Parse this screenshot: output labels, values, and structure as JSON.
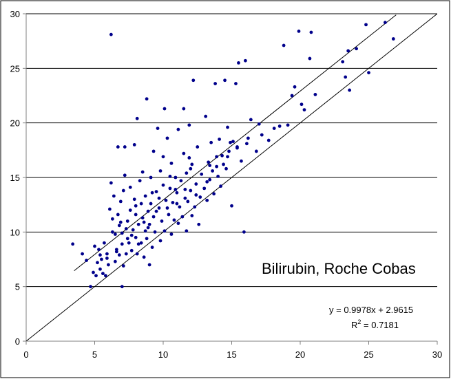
{
  "chart_data": {
    "type": "scatter",
    "title": "",
    "xlabel": "",
    "ylabel": "",
    "xlim": [
      0,
      30
    ],
    "ylim": [
      0,
      30
    ],
    "xticks": [
      "0",
      "5",
      "10",
      "15",
      "20",
      "25",
      "30"
    ],
    "yticks": [
      "0",
      "5",
      "10",
      "15",
      "20",
      "25",
      "30"
    ],
    "grid": "horizontal",
    "point_color": "#00008B",
    "annotation": "Bilirubin, Roche Cobas",
    "equation": "y = 0.9978x + 2.9615",
    "r2_prefix": "R",
    "r2_exp": "2",
    "r2_value": " = 0.7181",
    "lines": [
      {
        "name": "identity",
        "x": [
          0,
          30
        ],
        "y": [
          0,
          30
        ]
      },
      {
        "name": "regression",
        "x": [
          3.5,
          27
        ],
        "y": [
          6.45,
          29.9
        ]
      }
    ],
    "points": [
      [
        3.4,
        8.9
      ],
      [
        4.1,
        8.0
      ],
      [
        4.4,
        7.4
      ],
      [
        4.7,
        5.0
      ],
      [
        4.9,
        6.3
      ],
      [
        5.0,
        8.7
      ],
      [
        5.1,
        6.0
      ],
      [
        5.2,
        7.2
      ],
      [
        5.3,
        8.4
      ],
      [
        5.4,
        6.6
      ],
      [
        5.5,
        7.5
      ],
      [
        5.6,
        6.2
      ],
      [
        5.7,
        9.0
      ],
      [
        5.8,
        6.0
      ],
      [
        5.9,
        8.0
      ],
      [
        6.0,
        7.0
      ],
      [
        6.1,
        12.1
      ],
      [
        6.2,
        14.5
      ],
      [
        6.2,
        28.1
      ],
      [
        6.3,
        10.0
      ],
      [
        6.3,
        11.2
      ],
      [
        6.4,
        13.3
      ],
      [
        6.5,
        7.3
      ],
      [
        6.5,
        9.8
      ],
      [
        6.6,
        8.4
      ],
      [
        6.7,
        11.6
      ],
      [
        6.7,
        17.8
      ],
      [
        6.8,
        10.6
      ],
      [
        6.9,
        12.8
      ],
      [
        7.0,
        5.0
      ],
      [
        7.0,
        8.9
      ],
      [
        7.0,
        9.9
      ],
      [
        7.1,
        6.9
      ],
      [
        7.1,
        13.8
      ],
      [
        7.2,
        15.2
      ],
      [
        7.2,
        17.8
      ],
      [
        7.3,
        8.0
      ],
      [
        7.3,
        10.3
      ],
      [
        7.4,
        11.0
      ],
      [
        7.5,
        9.0
      ],
      [
        7.6,
        12.0
      ],
      [
        7.6,
        14.1
      ],
      [
        7.7,
        8.3
      ],
      [
        7.8,
        10.2
      ],
      [
        7.9,
        13.0
      ],
      [
        7.9,
        18.0
      ],
      [
        8.0,
        9.5
      ],
      [
        8.0,
        11.6
      ],
      [
        8.1,
        8.0
      ],
      [
        8.1,
        20.4
      ],
      [
        8.2,
        10.7
      ],
      [
        8.3,
        14.7
      ],
      [
        8.4,
        9.0
      ],
      [
        8.4,
        12.6
      ],
      [
        8.5,
        11.3
      ],
      [
        8.5,
        15.5
      ],
      [
        8.6,
        7.7
      ],
      [
        8.7,
        10.1
      ],
      [
        8.7,
        13.3
      ],
      [
        8.8,
        9.4
      ],
      [
        8.8,
        22.2
      ],
      [
        8.9,
        11.9
      ],
      [
        9.0,
        7.0
      ],
      [
        9.0,
        10.7
      ],
      [
        9.1,
        12.6
      ],
      [
        9.1,
        15.0
      ],
      [
        9.2,
        8.6
      ],
      [
        9.3,
        11.4
      ],
      [
        9.3,
        17.4
      ],
      [
        9.4,
        10.0
      ],
      [
        9.5,
        13.7
      ],
      [
        9.6,
        19.5
      ],
      [
        9.7,
        12.2
      ],
      [
        9.8,
        9.2
      ],
      [
        9.8,
        15.6
      ],
      [
        9.9,
        11.0
      ],
      [
        10.0,
        14.3
      ],
      [
        10.0,
        16.9
      ],
      [
        10.1,
        10.1
      ],
      [
        10.1,
        21.3
      ],
      [
        10.2,
        12.9
      ],
      [
        10.3,
        18.6
      ],
      [
        10.4,
        11.6
      ],
      [
        10.5,
        14.0
      ],
      [
        10.6,
        9.8
      ],
      [
        10.6,
        16.3
      ],
      [
        10.7,
        12.7
      ],
      [
        10.8,
        11.1
      ],
      [
        10.9,
        15.0
      ],
      [
        11.0,
        13.6
      ],
      [
        11.1,
        10.8
      ],
      [
        11.1,
        19.4
      ],
      [
        11.2,
        12.3
      ],
      [
        11.3,
        14.7
      ],
      [
        11.4,
        11.4
      ],
      [
        11.5,
        17.2
      ],
      [
        11.5,
        21.3
      ],
      [
        11.6,
        13.1
      ],
      [
        11.7,
        10.1
      ],
      [
        11.7,
        15.4
      ],
      [
        11.8,
        12.8
      ],
      [
        11.9,
        19.8
      ],
      [
        12.0,
        13.8
      ],
      [
        12.1,
        11.5
      ],
      [
        12.1,
        16.2
      ],
      [
        12.2,
        23.9
      ],
      [
        12.3,
        12.3
      ],
      [
        12.4,
        14.4
      ],
      [
        12.5,
        17.8
      ],
      [
        12.6,
        10.7
      ],
      [
        12.7,
        13.2
      ],
      [
        12.8,
        15.3
      ],
      [
        13.0,
        14.0
      ],
      [
        13.1,
        20.6
      ],
      [
        13.2,
        12.9
      ],
      [
        13.3,
        16.4
      ],
      [
        13.4,
        14.8
      ],
      [
        13.5,
        18.2
      ],
      [
        13.6,
        15.6
      ],
      [
        13.7,
        13.5
      ],
      [
        13.8,
        23.6
      ],
      [
        13.9,
        16.9
      ],
      [
        14.0,
        15.1
      ],
      [
        14.1,
        18.5
      ],
      [
        14.2,
        14.2
      ],
      [
        14.3,
        17.0
      ],
      [
        14.4,
        16.2
      ],
      [
        14.5,
        23.9
      ],
      [
        14.6,
        15.8
      ],
      [
        14.7,
        19.6
      ],
      [
        14.8,
        17.4
      ],
      [
        15.0,
        12.4
      ],
      [
        15.1,
        18.3
      ],
      [
        15.3,
        23.6
      ],
      [
        15.4,
        17.7
      ],
      [
        15.5,
        25.5
      ],
      [
        15.7,
        16.5
      ],
      [
        15.9,
        10.0
      ],
      [
        16.0,
        25.7
      ],
      [
        16.2,
        18.6
      ],
      [
        16.4,
        20.3
      ],
      [
        16.8,
        17.4
      ],
      [
        17.2,
        18.9
      ],
      [
        17.7,
        18.4
      ],
      [
        18.1,
        19.5
      ],
      [
        18.5,
        19.7
      ],
      [
        18.8,
        27.1
      ],
      [
        19.1,
        19.8
      ],
      [
        19.4,
        22.5
      ],
      [
        19.6,
        23.3
      ],
      [
        19.9,
        28.4
      ],
      [
        20.1,
        21.7
      ],
      [
        20.3,
        21.2
      ],
      [
        20.7,
        25.9
      ],
      [
        20.8,
        28.3
      ],
      [
        21.1,
        22.6
      ],
      [
        23.1,
        25.6
      ],
      [
        23.3,
        24.2
      ],
      [
        23.5,
        26.6
      ],
      [
        23.6,
        23.0
      ],
      [
        24.1,
        26.8
      ],
      [
        24.8,
        29.0
      ],
      [
        25.0,
        24.6
      ],
      [
        26.2,
        29.2
      ],
      [
        26.8,
        27.7
      ],
      [
        6.8,
        7.9
      ],
      [
        7.4,
        9.4
      ],
      [
        8.2,
        8.9
      ],
      [
        8.9,
        10.4
      ],
      [
        9.5,
        11.9
      ],
      [
        10.3,
        12.2
      ],
      [
        11.0,
        12.6
      ],
      [
        11.6,
        13.9
      ],
      [
        12.4,
        13.4
      ],
      [
        13.2,
        14.6
      ],
      [
        13.9,
        16.0
      ],
      [
        14.7,
        16.9
      ],
      [
        15.4,
        17.8
      ],
      [
        16.1,
        18.1
      ],
      [
        17.0,
        19.9
      ],
      [
        5.9,
        7.6
      ],
      [
        6.6,
        8.2
      ],
      [
        7.7,
        9.7
      ],
      [
        8.6,
        10.9
      ],
      [
        9.7,
        13.1
      ],
      [
        10.9,
        13.9
      ],
      [
        12.0,
        15.8
      ],
      [
        13.4,
        16.1
      ],
      [
        14.9,
        18.2
      ],
      [
        5.4,
        7.9
      ],
      [
        6.9,
        10.9
      ],
      [
        8.0,
        12.4
      ],
      [
        9.2,
        13.6
      ],
      [
        10.5,
        15.1
      ],
      [
        11.9,
        16.8
      ]
    ]
  }
}
